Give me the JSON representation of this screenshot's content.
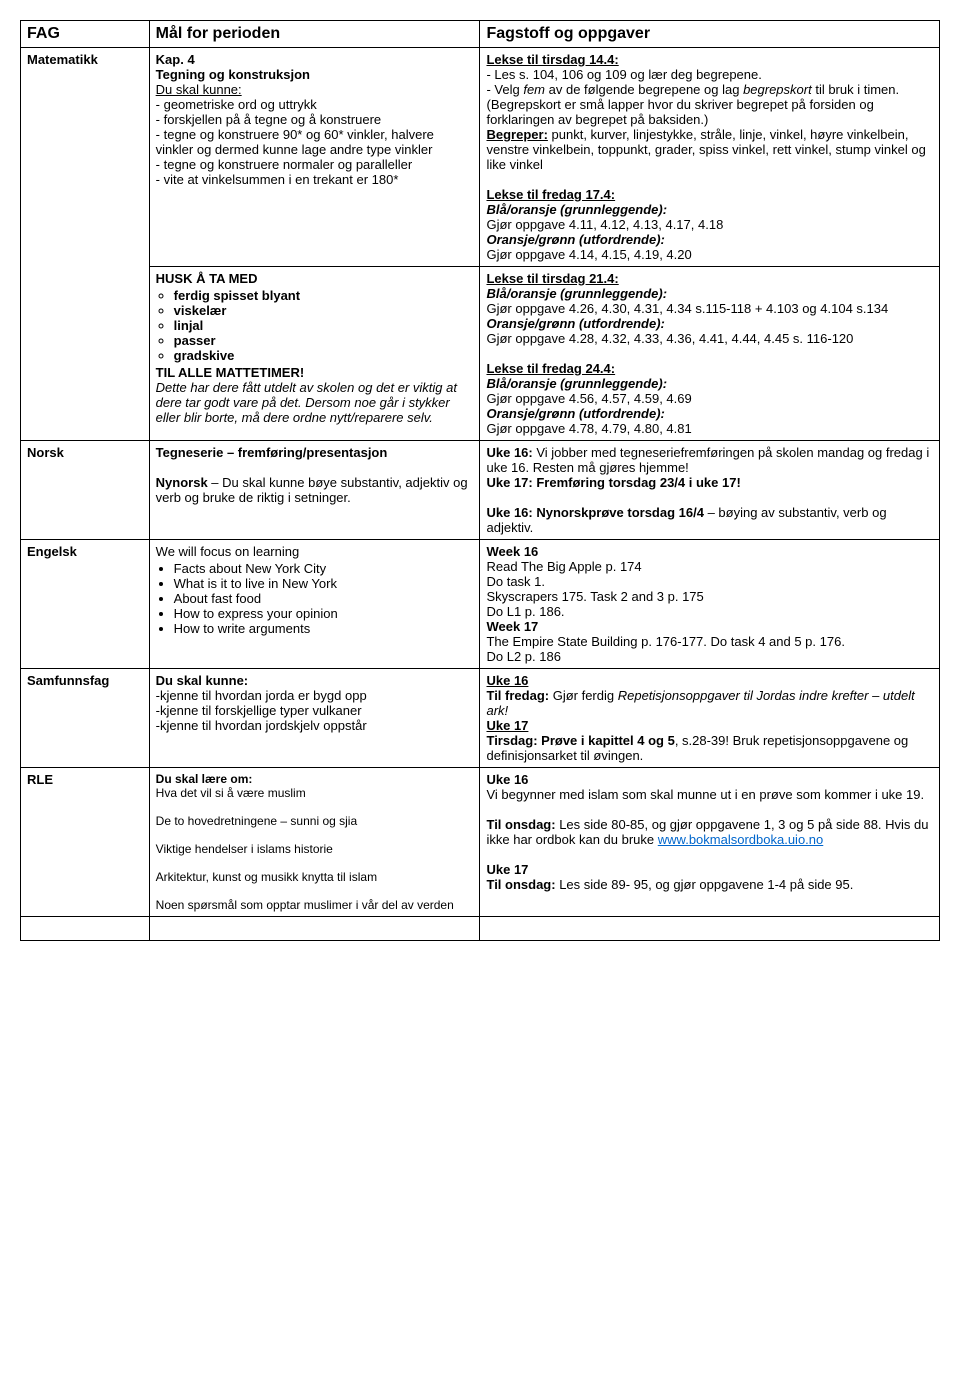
{
  "header": {
    "col1": "FAG",
    "col2": "Mål for perioden",
    "col3": "Fagstoff og oppgaver"
  },
  "matematikk": {
    "label": "Matematikk",
    "kap": "Kap. 4",
    "title": "Tegning og konstruksjon",
    "dsk": "Du skal kunne:",
    "p1": "- geometriske ord og uttrykk",
    "p2": "- forskjellen på å tegne og å konstruere",
    "p3": "- tegne og konstruere 90* og 60* vinkler, halvere vinkler og dermed kunne lage andre type vinkler",
    "p4": "- tegne og konstruere normaler og paralleller",
    "p5": "- vite at vinkelsummen i en trekant er 180*",
    "husk": "HUSK Å TA MED",
    "h1": "ferdig spisset blyant",
    "h2": "viskelær",
    "h3": "linjal",
    "h4": "passer",
    "h5": "gradskive",
    "til": "TIL ALLE MATTETIMER!",
    "ital": "Dette har dere fått utdelt av skolen og det er viktig at dere tar godt vare på det. Dersom noe går i stykker eller blir borte, må dere ordne nytt/reparere selv.",
    "lt1": "Lekse til tirsdag 14.4:",
    "r1": "- Les s. 104, 106 og 109 og lær deg begrepene.",
    "r2a": "- Velg ",
    "r2b": "fem",
    "r2c": " av de følgende begrepene og lag ",
    "r2d": "begrepskort",
    "r2e": " til bruk i timen. (Begrepskort er små lapper hvor du skriver begrepet på forsiden og forklaringen av begrepet på baksiden.)",
    "beg": "Begreper:",
    "begtxt": " punkt, kurver, linjestykke, stråle, linje, vinkel, høyre vinkelbein, venstre vinkelbein, toppunkt, grader, spiss vinkel, rett vinkel, stump vinkel og like vinkel",
    "lf1": "Lekse til fredag 17.4:",
    "blo": "Blå/oransje (grunnleggende):",
    "bo1": "Gjør oppgave 4.11, 4.12, 4.13, 4.17, 4.18",
    "org": "Oransje/grønn (utfordrende):",
    "og1": "Gjør oppgave 4.14, 4.15, 4.19, 4.20",
    "lt2": "Lekse til tirsdag 21.4:",
    "bo2": "Gjør oppgave 4.26, 4.30, 4.31, 4.34 s.115-118 + 4.103 og 4.104 s.134",
    "og2": "Gjør oppgave 4.28, 4.32, 4.33, 4.36, 4.41, 4.44, 4.45 s. 116-120",
    "lf2": "Lekse til fredag 24.4:",
    "bo3": "Gjør oppgave 4.56, 4.57, 4.59, 4.69",
    "og3": "Gjør oppgave 4.78, 4.79, 4.80, 4.81"
  },
  "norsk": {
    "label": "Norsk",
    "t1": "Tegneserie – fremføring/presentasjon",
    "t2a": "Nynorsk",
    "t2b": " – Du skal kunne bøye substantiv, adjektiv og verb og bruke de riktig i setninger.",
    "r16a": "Uke 16:",
    "r16b": " Vi jobber med tegneseriefremføringen på skolen mandag og fredag i uke 16. Resten må gjøres hjemme!",
    "r17": "Uke 17: Fremføring torsdag 23/4 i uke 17!",
    "r16c": "Uke 16: Nynorskprøve torsdag 16/4",
    "r16d": " – bøying av substantiv, verb og adjektiv."
  },
  "engelsk": {
    "label": "Engelsk",
    "intro": "We will focus on learning",
    "b1": "Facts about New York City",
    "b2": "What is it to live in New York",
    "b3": "About fast food",
    "b4": "How to express your opinion",
    "b5": "How to write arguments",
    "w16": "Week 16",
    "w16a": "Read The Big Apple p. 174",
    "w16b": "Do task 1.",
    "w16c": "Skyscrapers 175. Task 2 and 3 p. 175",
    "w16d": "Do L1 p. 186.",
    "w17": "Week 17",
    "w17a": "The Empire State Building p. 176-177. Do task 4 and 5 p. 176.",
    "w17b": "Do L2 p. 186"
  },
  "samfunn": {
    "label": "Samfunnsfag",
    "dsk": "Du skal kunne:",
    "p1": "-kjenne til hvordan jorda er bygd opp",
    "p2": "-kjenne til forskjellige typer vulkaner",
    "p3": "-kjenne til hvordan jordskjelv oppstår",
    "u16": "Uke 16",
    "fa": "Til fredag:",
    "fb": " Gjør ferdig ",
    "fc": "Repetisjonsoppgaver til Jordas indre krefter – utdelt ark!",
    "u17": "Uke 17",
    "ta": "Tirsdag: Prøve i kapittel 4 og 5",
    "tb": ", s.28-39! Bruk repetisjonsoppgavene og definisjonsarket til øvingen."
  },
  "rle": {
    "label": "RLE",
    "dsl": "Du skal lære om:",
    "p1": "Hva det vil si å være muslim",
    "p2": "De to hovedretningene – sunni og sjia",
    "p3": "Viktige hendelser i islams historie",
    "p4": "Arkitektur, kunst og musikk knytta til islam",
    "p5": "Noen spørsmål som opptar muslimer i vår del av verden",
    "u16": "Uke 16",
    "r1": "Vi begynner med islam som skal munne ut i en prøve som kommer i uke 19.",
    "toa": "Til onsdag:",
    "tob": " Les side 80-85, og gjør oppgavene 1, 3 og 5 på side 88. Hvis du ikke har ordbok kan du bruke ",
    "link": "www.bokmalsordboka.uio.no",
    "u17": "Uke 17",
    "to2a": "Til onsdag:",
    "to2b": " Les side 89- 95, og gjør oppgavene 1-4 på side 95."
  }
}
